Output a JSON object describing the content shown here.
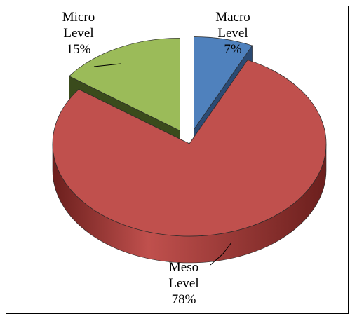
{
  "chart_data": {
    "type": "pie",
    "style": "3d-exploded",
    "slices": [
      {
        "name_line1": "Macro",
        "name_line2": "Level",
        "value": 7,
        "value_label": "7%",
        "color": "#4F81BD",
        "side_color": "#2B4A73",
        "exploded": true
      },
      {
        "name_line1": "Meso",
        "name_line2": "Level",
        "value": 78,
        "value_label": "78%",
        "color": "#C0504D",
        "side_color": "#6B1F1D",
        "exploded": false
      },
      {
        "name_line1": "Micro",
        "name_line2": "Level",
        "value": 15,
        "value_label": "15%",
        "color": "#9BBB59",
        "side_color": "#3A4B1C",
        "exploded": true
      }
    ]
  }
}
